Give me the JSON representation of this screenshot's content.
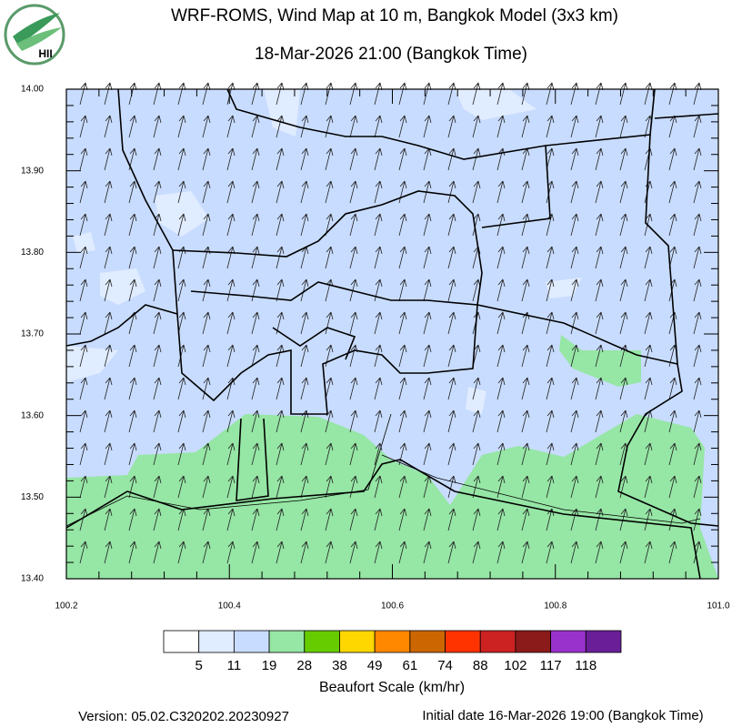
{
  "header": {
    "title": "WRF-ROMS, Wind Map at 10 m, Bangkok Model (3x3 km)",
    "subtitle": "18-Mar-2026 21:00 (Bangkok Time)",
    "logo": "HII"
  },
  "map": {
    "x_ticks": [
      "100.2",
      "100.4",
      "100.6",
      "100.8",
      "101.0"
    ],
    "y_ticks": [
      "14.00",
      "13.90",
      "13.80",
      "13.70",
      "13.60",
      "13.50",
      "13.40"
    ]
  },
  "colorbar": {
    "title": "Beaufort Scale (km/hr)",
    "colors": [
      "#ffffff",
      "#e0ecff",
      "#c8dcff",
      "#96e6a5",
      "#66cc00",
      "#ffd700",
      "#ff8800",
      "#cc6600",
      "#ff3300",
      "#cc2222",
      "#8b1a1a",
      "#9932cc",
      "#6a1f99"
    ],
    "labels": [
      "5",
      "11",
      "19",
      "28",
      "38",
      "49",
      "61",
      "74",
      "88",
      "102",
      "117",
      "118"
    ]
  },
  "footer": {
    "version": "Version: 05.02.C320202.20230927",
    "initial_date": "Initial date 16-Mar-2026 19:00 (Bangkok Time)"
  }
}
